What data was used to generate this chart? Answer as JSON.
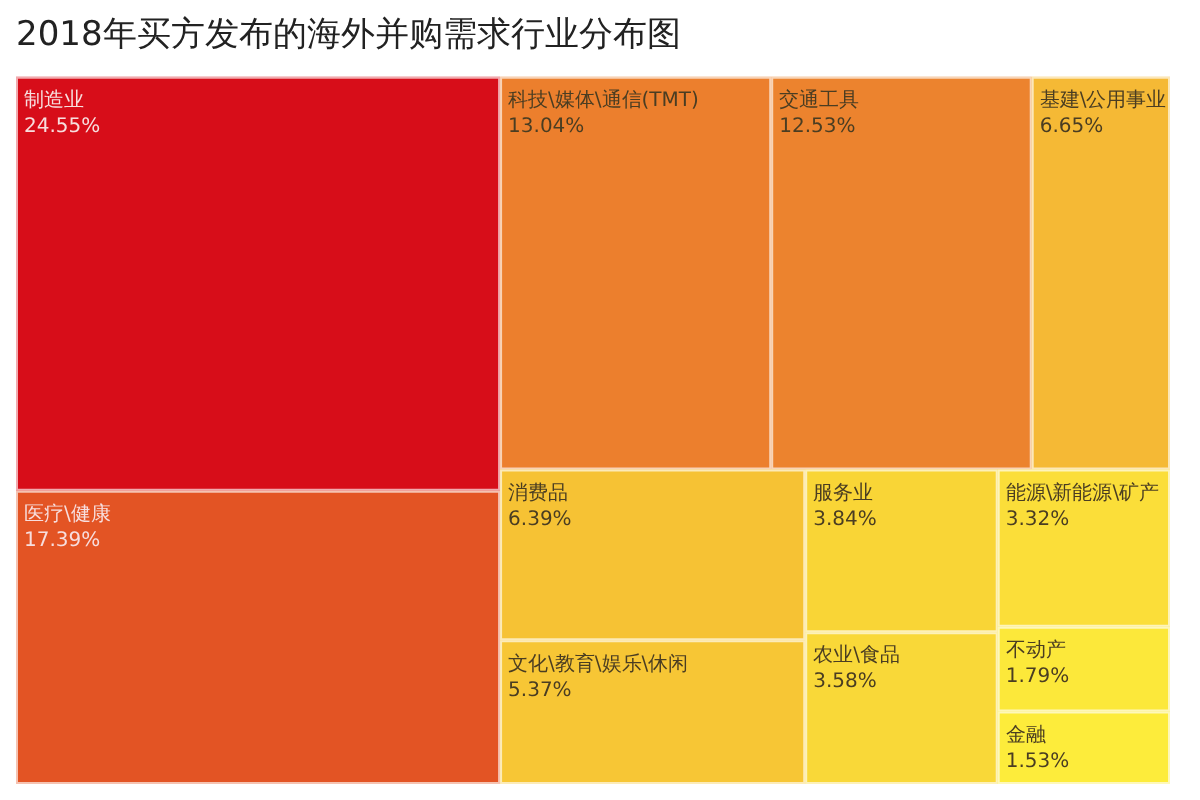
{
  "chart_data": {
    "type": "other",
    "title": "2018年买方发布的海外并购需求行业分布图",
    "categories": [
      "制造业",
      "医疗\\健康",
      "科技\\媒体\\通信(TMT)",
      "交通工具",
      "基建\\公用事业",
      "消费品",
      "文化\\教育\\娱乐\\休闲",
      "服务业",
      "农业\\食品",
      "能源\\新能源\\矿产",
      "不动产",
      "金融"
    ],
    "values": [
      24.55,
      17.39,
      13.04,
      12.53,
      6.65,
      6.39,
      5.37,
      3.84,
      3.58,
      3.32,
      1.79,
      1.53
    ],
    "value_labels": [
      "24.55%",
      "17.39%",
      "13.04%",
      "12.53%",
      "6.65%",
      "6.39%",
      "5.37%",
      "3.84%",
      "3.58%",
      "3.32%",
      "1.79%",
      "1.53%"
    ],
    "colors": [
      "#d70d19",
      "#e35424",
      "#ec7f2d",
      "#ec832e",
      "#f5b935",
      "#f6c234",
      "#f7c635",
      "#f9d536",
      "#f9d838",
      "#fbde39",
      "#fce83a",
      "#fdec3b"
    ]
  }
}
